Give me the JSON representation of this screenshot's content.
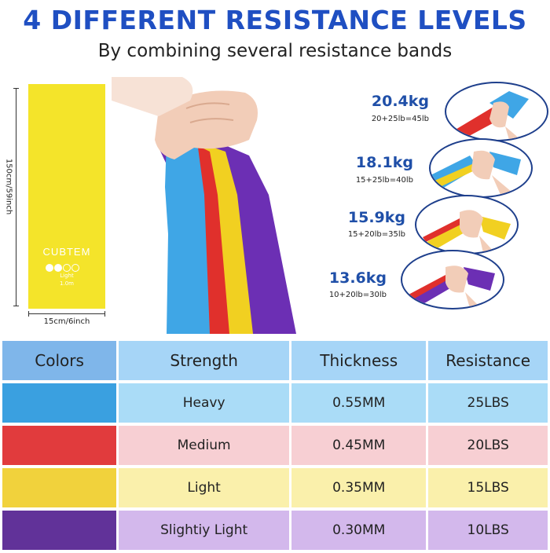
{
  "header": {
    "title": "4 DIFFERENT RESISTANCE LEVELS",
    "subtitle": "By combining several resistance bands"
  },
  "product": {
    "brand": "CUBTEM",
    "level": "Light",
    "band_text": "1.0m",
    "height_label": "150cm/59inch",
    "width_label": "15cm/6inch",
    "color": "#f4e42a"
  },
  "combos": [
    {
      "weight": "20.4kg",
      "equation": "20+25lb=45lb"
    },
    {
      "weight": "18.1kg",
      "equation": "15+25lb=40lb"
    },
    {
      "weight": "15.9kg",
      "equation": "15+20lb=35lb"
    },
    {
      "weight": "13.6kg",
      "equation": "10+20lb=30lb"
    }
  ],
  "table": {
    "headers": [
      "Colors",
      "Strength",
      "Thickness",
      "Resistance"
    ],
    "header_colors": [
      "#7fb6ea",
      "#a6d5f7",
      "#a6d5f7",
      "#a6d5f7"
    ],
    "rows": [
      {
        "color": "#3aa0e0",
        "bg": "#aadcf7",
        "strength": "Heavy",
        "thickness": "0.55MM",
        "resistance": "25LBS"
      },
      {
        "color": "#e13b3d",
        "bg": "#f7cfd3",
        "strength": "Medium",
        "thickness": "0.45MM",
        "resistance": "20LBS"
      },
      {
        "color": "#f1d23c",
        "bg": "#faf0ab",
        "strength": "Light",
        "thickness": "0.35MM",
        "resistance": "15LBS"
      },
      {
        "color": "#613299",
        "bg": "#d3b8ec",
        "strength": "Slightiy Light",
        "thickness": "0.30MM",
        "resistance": "10LBS"
      }
    ]
  }
}
